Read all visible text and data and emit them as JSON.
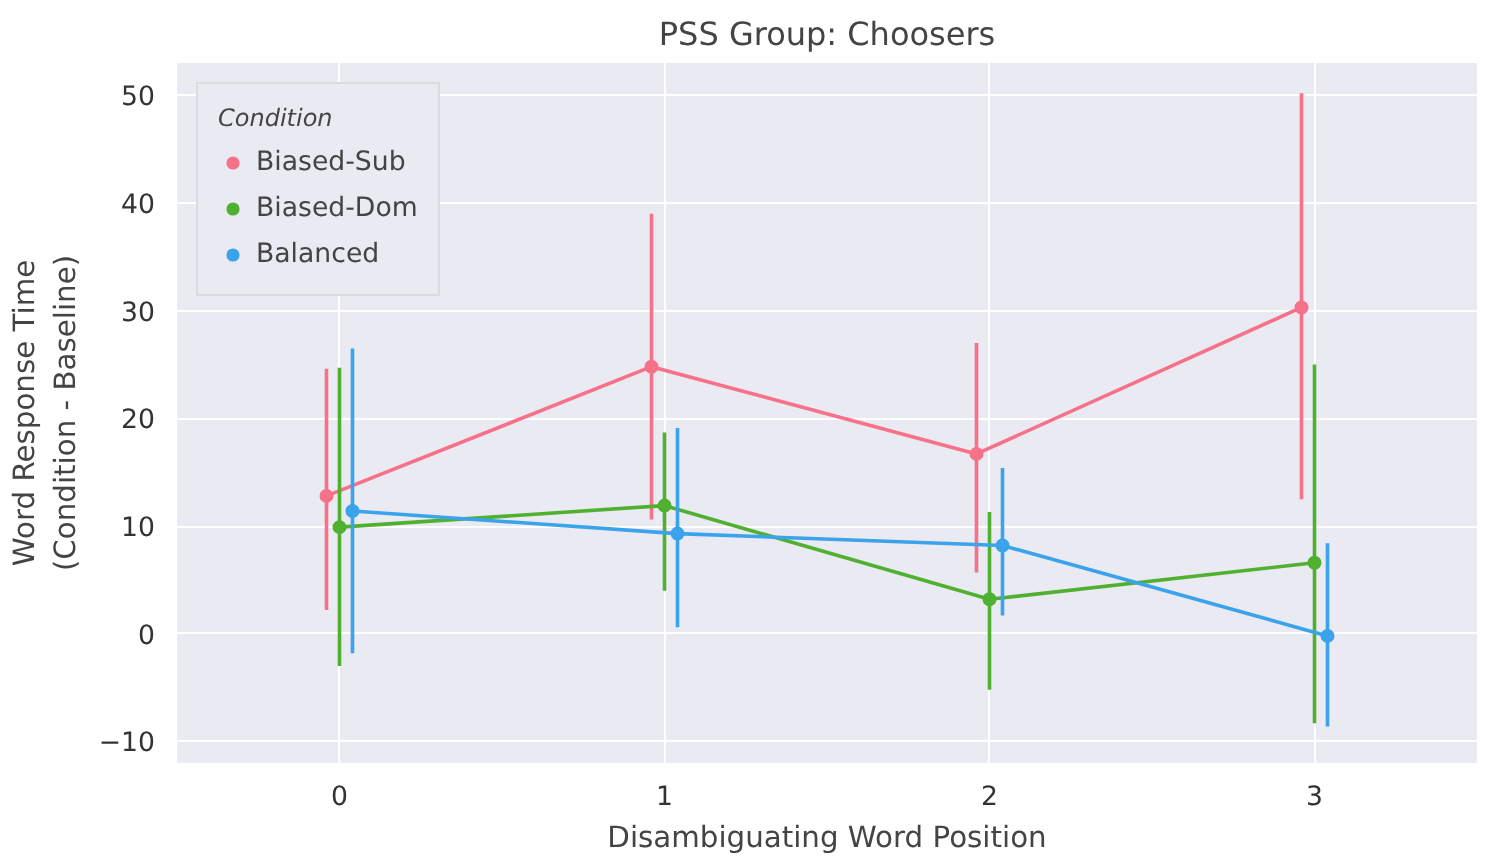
{
  "chart_data": {
    "type": "line",
    "title": "PSS Group: Choosers",
    "xlabel": "Disambiguating Word Position",
    "ylabel": "Word Response Time\n(Condition - Baseline)",
    "legend_title": "Condition",
    "categories": [
      "0",
      "1",
      "2",
      "3"
    ],
    "series": [
      {
        "name": "Biased-Sub",
        "color": "#f77189",
        "values": [
          12.8,
          24.8,
          16.7,
          30.3
        ],
        "errors": [
          [
            2.2,
            24.6
          ],
          [
            10.6,
            39.0
          ],
          [
            5.7,
            27.0
          ],
          [
            12.5,
            50.2
          ]
        ]
      },
      {
        "name": "Biased-Dom",
        "color": "#50b131",
        "values": [
          9.9,
          11.9,
          3.2,
          6.6
        ],
        "errors": [
          [
            -3.0,
            24.7
          ],
          [
            4.0,
            18.7
          ],
          [
            -5.2,
            11.3
          ],
          [
            -8.3,
            25.0
          ]
        ]
      },
      {
        "name": "Balanced",
        "color": "#3ba3ec",
        "values": [
          11.4,
          9.3,
          8.2,
          -0.2
        ],
        "errors": [
          [
            -1.8,
            26.5
          ],
          [
            0.6,
            19.1
          ],
          [
            1.7,
            15.4
          ],
          [
            -8.6,
            8.4
          ]
        ]
      }
    ],
    "ylim": [
      -12,
      53
    ],
    "yticks": [
      -10,
      0,
      10,
      20,
      30,
      40,
      50
    ],
    "grid": true,
    "legend": "top left",
    "marker": "circle",
    "line_style": "solid"
  }
}
